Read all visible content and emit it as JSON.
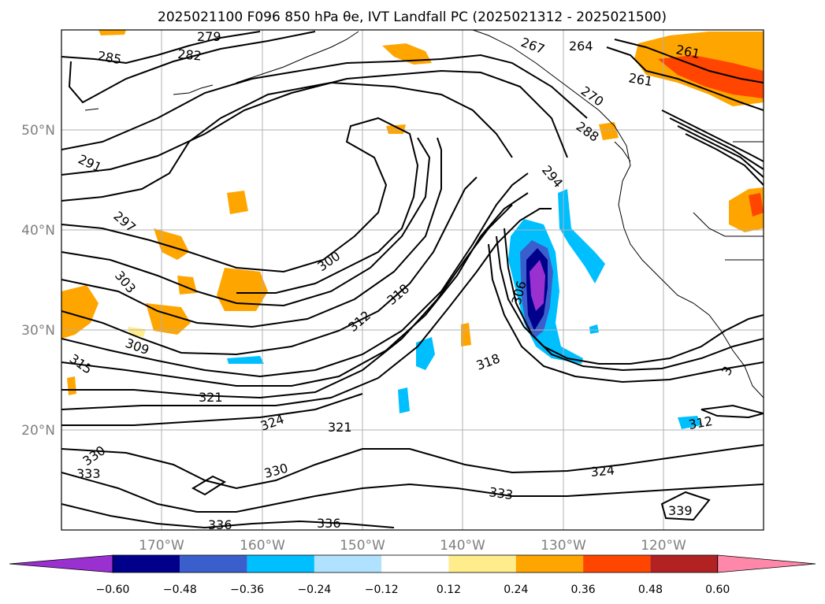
{
  "title": "2025021100 F096 850 hPa θe, IVT Landfall PC (2025021312 - 2025021500)",
  "lon_ticks": [
    "170°W",
    "160°W",
    "150°W",
    "140°W",
    "130°W",
    "120°W"
  ],
  "lat_ticks": [
    "50°N",
    "40°N",
    "30°N",
    "20°N"
  ],
  "colorbar": {
    "ticks": [
      "−0.60",
      "−0.48",
      "−0.36",
      "−0.24",
      "−0.12",
      "0.12",
      "0.24",
      "0.36",
      "0.48",
      "0.60"
    ],
    "colors": [
      "#9b30d0",
      "#00008b",
      "#3a5fcd",
      "#00bfff",
      "#b0e2ff",
      "#ffffff",
      "#ffec8b",
      "#ffa500",
      "#ff4500",
      "#b22222",
      "#ff88aa"
    ]
  },
  "contour_labels": [
    "279",
    "282",
    "285",
    "264",
    "267",
    "261",
    "261",
    "270",
    "288",
    "291",
    "294",
    "297",
    "300",
    "303",
    "306",
    "309",
    "312",
    "315",
    "318",
    "318",
    "321",
    "321",
    "324",
    "324",
    "330",
    "330",
    "333",
    "333",
    "336",
    "336",
    "339",
    "312",
    "3"
  ]
}
